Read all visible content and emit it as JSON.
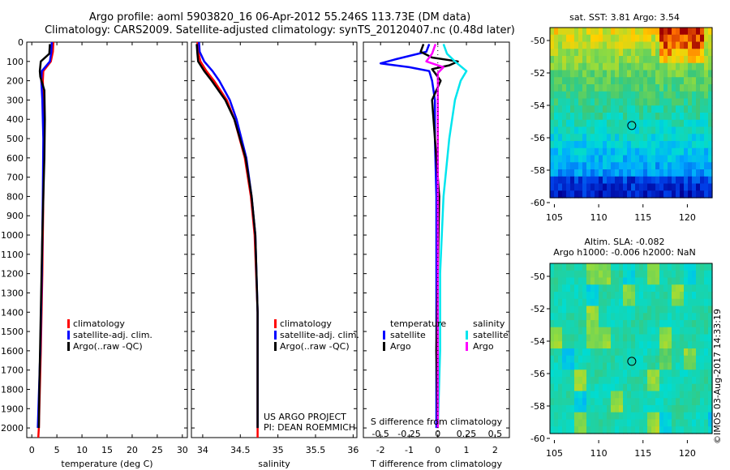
{
  "header": {
    "line1": "Argo profile: aoml 5903820_16 06-Apr-2012 55.246S 113.73E (DM data)",
    "line2": "Climatology: CARS2009. Satellite-adjusted climatology: synTS_20120407.nc (0.48d later)"
  },
  "colors": {
    "climatology": "#ff0000",
    "satellite": "#0000ff",
    "argo": "#000000",
    "sal_satellite": "#00e5ee",
    "sal_argo": "#ff00ff"
  },
  "chart_data": [
    {
      "type": "line",
      "name": "temperature-profile",
      "xlabel": "temperature (deg C)",
      "ylabel": "",
      "xlim": [
        -1,
        31
      ],
      "ylim": [
        2050,
        0
      ],
      "x_ticks": [
        0,
        5,
        10,
        15,
        20,
        25,
        30
      ],
      "y_ticks": [
        0,
        100,
        200,
        300,
        400,
        500,
        600,
        700,
        800,
        900,
        1000,
        1100,
        1200,
        1300,
        1400,
        1500,
        1600,
        1700,
        1800,
        1900,
        2000
      ],
      "legend": [
        "climatology",
        "satellite-adj. clim.",
        "Argo(..raw -QC)"
      ],
      "series": [
        {
          "name": "climatology",
          "color_key": "climatology",
          "depth": [
            0,
            50,
            100,
            150,
            200,
            300,
            500,
            800,
            1200,
            1600,
            2000,
            2050
          ],
          "values": [
            4.3,
            4.2,
            3.8,
            2.3,
            2.2,
            2.3,
            2.4,
            2.3,
            2.1,
            1.8,
            1.4,
            1.3
          ]
        },
        {
          "name": "satellite-adj. clim.",
          "color_key": "satellite",
          "depth": [
            0,
            50,
            100,
            150,
            200,
            300,
            500,
            800,
            1200,
            1600,
            2000
          ],
          "values": [
            4.0,
            3.9,
            3.6,
            2.0,
            1.9,
            2.1,
            2.3,
            2.2,
            2.0,
            1.7,
            1.2
          ]
        },
        {
          "name": "Argo(..raw -QC)",
          "color_key": "argo",
          "depth": [
            10,
            60,
            100,
            150,
            180,
            250,
            400,
            600,
            800,
            1000,
            1400,
            1800,
            2000
          ],
          "values": [
            3.6,
            3.5,
            1.8,
            1.6,
            1.7,
            2.5,
            2.6,
            2.5,
            2.3,
            2.1,
            1.8,
            1.5,
            1.4
          ]
        }
      ]
    },
    {
      "type": "line",
      "name": "salinity-profile",
      "xlabel": "salinity",
      "ylabel": "",
      "xlim": [
        33.85,
        36.05
      ],
      "ylim": [
        2050,
        0
      ],
      "x_ticks": [
        34,
        34.5,
        35,
        35.5,
        36
      ],
      "x_tick_labels": [
        "34",
        "34.5",
        "35",
        "35.5",
        "36"
      ],
      "legend": [
        "climatology",
        "satellite-adj. clim.",
        "Argo(..raw -QC)"
      ],
      "annotation": [
        "US ARGO PROJECT",
        "PI: DEAN ROEMMICH"
      ],
      "series": [
        {
          "name": "climatology",
          "color_key": "climatology",
          "depth": [
            0,
            50,
            100,
            150,
            200,
            300,
            400,
            600,
            800,
            1000,
            1400,
            2050
          ],
          "values": [
            33.93,
            33.94,
            33.97,
            34.05,
            34.15,
            34.32,
            34.42,
            34.56,
            34.64,
            34.69,
            34.73,
            34.73
          ]
        },
        {
          "name": "satellite-adj. clim.",
          "color_key": "satellite",
          "depth": [
            0,
            50,
            100,
            150,
            200,
            300,
            400,
            600,
            800,
            1000,
            1400,
            2000
          ],
          "values": [
            33.95,
            33.96,
            34.02,
            34.13,
            34.22,
            34.36,
            34.45,
            34.58,
            34.65,
            34.7,
            34.73,
            34.73
          ]
        },
        {
          "name": "Argo(..raw -QC)",
          "color_key": "argo",
          "depth": [
            10,
            60,
            100,
            150,
            200,
            300,
            400,
            600,
            800,
            1000,
            1400,
            2000
          ],
          "values": [
            33.92,
            33.93,
            33.94,
            34.02,
            34.12,
            34.3,
            34.42,
            34.57,
            34.65,
            34.7,
            34.73,
            34.73
          ]
        }
      ]
    },
    {
      "type": "line",
      "name": "difference-profile",
      "xlabel": "T difference from climatology",
      "top_axis_label": "S difference from climatology",
      "xlim": [
        -2.6,
        2.5
      ],
      "ylim": [
        2050,
        0
      ],
      "x_ticks": [
        -2,
        -1,
        0,
        1,
        2
      ],
      "x_tick_labels": [
        "-2",
        "-1",
        "0",
        "1",
        "2"
      ],
      "s_ticks": [
        "-0.5",
        "-0.25",
        "0",
        "0.25",
        "0.5"
      ],
      "s_scale": 4,
      "legend_titles": [
        "temperature",
        "salinity"
      ],
      "legend": [
        "satellite",
        "Argo",
        "satellite",
        "Argo"
      ],
      "series": [
        {
          "name": "T satellite",
          "color_key": "satellite",
          "depth": [
            10,
            50,
            90,
            110,
            130,
            150,
            200,
            300,
            500,
            800,
            1200,
            1600,
            2000
          ],
          "values": [
            -0.3,
            -0.4,
            -1.5,
            -2.0,
            -1.0,
            -0.3,
            -0.2,
            -0.1,
            -0.1,
            -0.05,
            -0.05,
            -0.05,
            -0.05
          ]
        },
        {
          "name": "T Argo",
          "color_key": "argo",
          "depth": [
            10,
            50,
            80,
            100,
            120,
            140,
            200,
            300,
            500,
            800,
            1200,
            1600,
            2000
          ],
          "values": [
            -0.5,
            -0.6,
            -0.2,
            0.7,
            0.4,
            -0.2,
            0.1,
            -0.2,
            -0.1,
            0.05,
            0.0,
            -0.05,
            0.0
          ]
        },
        {
          "name": "S satellite",
          "color_key": "sal_satellite",
          "depth": [
            10,
            60,
            100,
            150,
            200,
            300,
            500,
            800,
            1200,
            1600,
            2000
          ],
          "values": [
            0.05,
            0.08,
            0.15,
            0.25,
            0.2,
            0.15,
            0.1,
            0.05,
            0.02,
            0.02,
            0.0
          ]
        },
        {
          "name": "S Argo",
          "color_key": "sal_argo",
          "depth": [
            10,
            60,
            100,
            130,
            160,
            200,
            300,
            500,
            800,
            1200,
            1600,
            2000
          ],
          "values": [
            -0.02,
            -0.05,
            -0.1,
            0.05,
            0.0,
            0.0,
            0.0,
            0.0,
            0.0,
            0.0,
            0.0,
            0.0
          ]
        }
      ]
    },
    {
      "type": "heatmap",
      "name": "sst-map",
      "title": "sat. SST: 3.81  Argo: 3.54",
      "xlim": [
        104.5,
        122.8
      ],
      "ylim": [
        -60.1,
        -49.2
      ],
      "x_ticks": [
        105,
        110,
        115,
        120
      ],
      "y_ticks": [
        -50,
        -52,
        -54,
        -56,
        -58,
        -60
      ],
      "marker": {
        "lon": 113.73,
        "lat": -55.246
      }
    },
    {
      "type": "heatmap",
      "name": "sla-map",
      "title": [
        "Altim. SLA: -0.082",
        "Argo h1000: -0.006 h2000: NaN"
      ],
      "xlim": [
        104.5,
        122.8
      ],
      "ylim": [
        -60.1,
        -49.2
      ],
      "x_ticks": [
        105,
        110,
        115,
        120
      ],
      "y_ticks": [
        -50,
        -52,
        -54,
        -56,
        -58,
        -60
      ],
      "marker": {
        "lon": 113.73,
        "lat": -55.246
      }
    }
  ],
  "footer": {
    "stamp": "©IMOS 03-Aug-2017 14:33:19"
  }
}
